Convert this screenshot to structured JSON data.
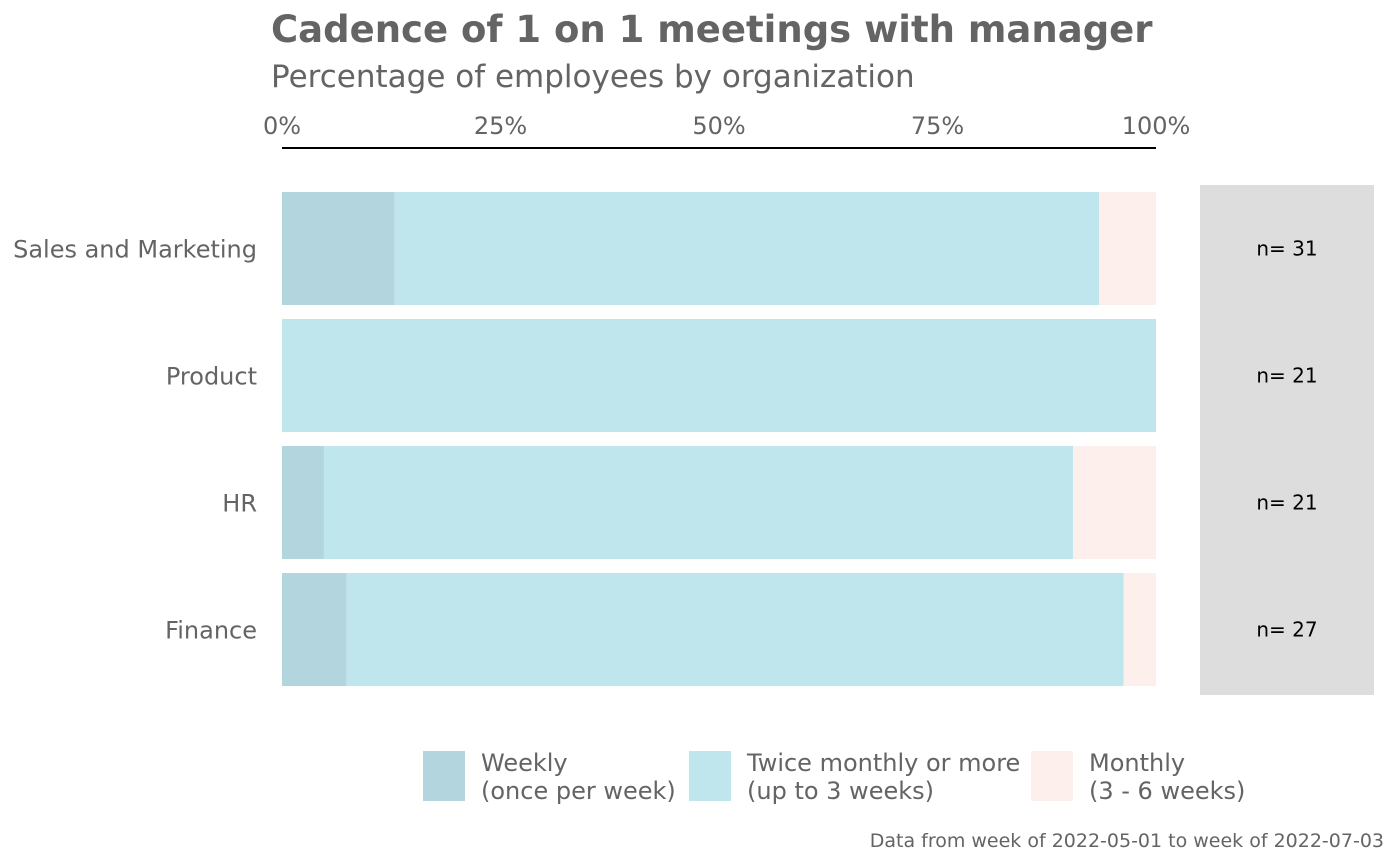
{
  "chart_data": {
    "type": "bar",
    "orientation": "horizontal",
    "stacked": true,
    "normalized": true,
    "title": "Cadence of 1 on 1 meetings with manager",
    "subtitle": "Percentage of employees by organization",
    "caption": "Data from week of 2022-05-01 to week of 2022-07-03",
    "xlim": [
      0,
      1
    ],
    "x_ticks": [
      "0%",
      "25%",
      "50%",
      "75%",
      "100%"
    ],
    "x_tick_values": [
      0,
      0.25,
      0.5,
      0.75,
      1
    ],
    "x_axis_position": "top",
    "grid": false,
    "legend_position": "bottom",
    "categories": [
      "Sales and Marketing",
      "Product",
      "HR",
      "Finance"
    ],
    "counts": [
      "n= 31",
      "n= 21",
      "n= 21",
      "n= 27"
    ],
    "series": [
      {
        "name": "Weekly",
        "legend_lines": [
          "Weekly",
          "(once per week)"
        ],
        "color": "#b3d5dd",
        "values": [
          0.129,
          0.0,
          0.048,
          0.074
        ]
      },
      {
        "name": "Twice monthly or more",
        "legend_lines": [
          "Twice monthly or more",
          "(up to 3 weeks)"
        ],
        "color": "#bfe5ed",
        "values": [
          0.806,
          1.0,
          0.857,
          0.889
        ]
      },
      {
        "name": "Monthly",
        "legend_lines": [
          "Monthly",
          "(3 - 6 weeks)"
        ],
        "color": "#fcefec",
        "values": [
          0.065,
          0.0,
          0.095,
          0.037
        ]
      }
    ],
    "count_panel_color": "#dddddd",
    "axis_line_color": "#000000"
  }
}
